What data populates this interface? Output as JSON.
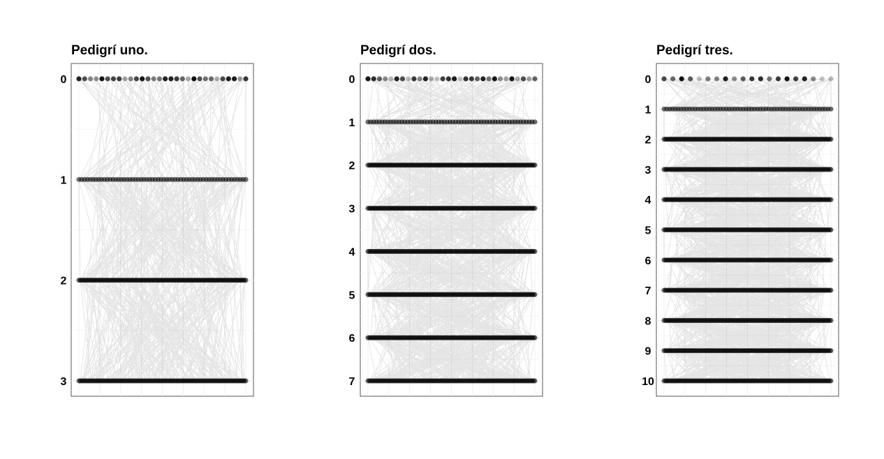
{
  "figure": {
    "panels": [
      {
        "title": "Pedigrí uno.",
        "generations": [
          0,
          1,
          2,
          3
        ],
        "counts": [
          30,
          60,
          120,
          120
        ]
      },
      {
        "title": "Pedigrí dos.",
        "generations": [
          0,
          1,
          2,
          3,
          4,
          5,
          6,
          7
        ],
        "counts": [
          30,
          60,
          120,
          120,
          120,
          120,
          120,
          120
        ]
      },
      {
        "title": "Pedigrí tres.",
        "generations": [
          0,
          1,
          2,
          3,
          4,
          5,
          6,
          7,
          8,
          9,
          10
        ],
        "counts": [
          20,
          60,
          120,
          120,
          120,
          120,
          120,
          120,
          120,
          120,
          120
        ]
      }
    ]
  }
}
